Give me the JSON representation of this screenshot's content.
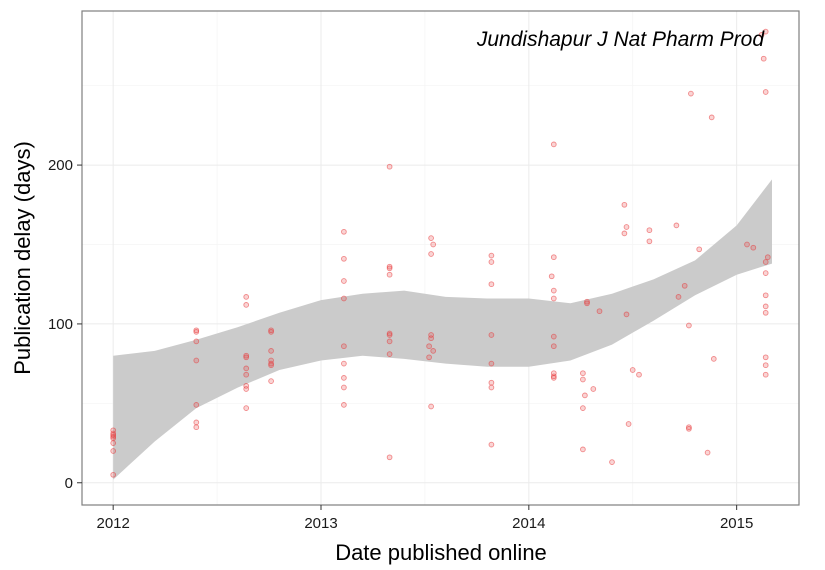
{
  "chart_data": {
    "type": "scatter",
    "title": "",
    "annotation": "Jundishapur J Nat Pharm Prod",
    "xlabel": "Date published online",
    "ylabel": "Publication delay (days)",
    "x_ticks": [
      {
        "label": "2012",
        "value": 2012.0
      },
      {
        "label": "2013",
        "value": 2013.0
      },
      {
        "label": "2014",
        "value": 2014.0
      },
      {
        "label": "2015",
        "value": 2015.0
      }
    ],
    "y_ticks": [
      {
        "label": "0",
        "value": 0
      },
      {
        "label": "100",
        "value": 100
      },
      {
        "label": "200",
        "value": 200
      }
    ],
    "xlim": [
      2011.85,
      2015.3
    ],
    "ylim": [
      -14,
      297
    ],
    "grid": true,
    "colors": {
      "points": "#e8393a",
      "ribbon": "#cbcbcb",
      "panel_border": "#7f7f7f",
      "grid_major": "#ebebeb",
      "grid_minor": "#f5f5f5"
    },
    "series": [
      {
        "type": "scatter",
        "points": [
          [
            2012.0,
            33
          ],
          [
            2012.0,
            31
          ],
          [
            2012.0,
            30
          ],
          [
            2012.0,
            29
          ],
          [
            2012.0,
            28
          ],
          [
            2012.0,
            25
          ],
          [
            2012.0,
            20
          ],
          [
            2012.0,
            5
          ],
          [
            2012.4,
            96
          ],
          [
            2012.4,
            95
          ],
          [
            2012.4,
            89
          ],
          [
            2012.4,
            77
          ],
          [
            2012.4,
            49
          ],
          [
            2012.4,
            38
          ],
          [
            2012.4,
            35
          ],
          [
            2012.64,
            117
          ],
          [
            2012.64,
            112
          ],
          [
            2012.64,
            80
          ],
          [
            2012.64,
            79
          ],
          [
            2012.64,
            72
          ],
          [
            2012.64,
            68
          ],
          [
            2012.64,
            61
          ],
          [
            2012.64,
            59
          ],
          [
            2012.64,
            47
          ],
          [
            2012.76,
            96
          ],
          [
            2012.76,
            95
          ],
          [
            2012.76,
            83
          ],
          [
            2012.76,
            77
          ],
          [
            2012.76,
            75
          ],
          [
            2012.76,
            74
          ],
          [
            2012.76,
            64
          ],
          [
            2013.11,
            158
          ],
          [
            2013.11,
            141
          ],
          [
            2013.11,
            127
          ],
          [
            2013.11,
            116
          ],
          [
            2013.11,
            86
          ],
          [
            2013.11,
            75
          ],
          [
            2013.11,
            66
          ],
          [
            2013.11,
            60
          ],
          [
            2013.11,
            49
          ],
          [
            2013.33,
            199
          ],
          [
            2013.33,
            136
          ],
          [
            2013.33,
            135
          ],
          [
            2013.33,
            131
          ],
          [
            2013.33,
            94
          ],
          [
            2013.33,
            93
          ],
          [
            2013.33,
            89
          ],
          [
            2013.33,
            81
          ],
          [
            2013.33,
            16
          ],
          [
            2013.53,
            154
          ],
          [
            2013.54,
            150
          ],
          [
            2013.53,
            144
          ],
          [
            2013.53,
            93
          ],
          [
            2013.53,
            91
          ],
          [
            2013.52,
            86
          ],
          [
            2013.54,
            83
          ],
          [
            2013.52,
            79
          ],
          [
            2013.53,
            48
          ],
          [
            2013.82,
            143
          ],
          [
            2013.82,
            139
          ],
          [
            2013.82,
            125
          ],
          [
            2013.82,
            93
          ],
          [
            2013.82,
            75
          ],
          [
            2013.82,
            63
          ],
          [
            2013.82,
            60
          ],
          [
            2013.82,
            24
          ],
          [
            2014.12,
            213
          ],
          [
            2014.12,
            142
          ],
          [
            2014.11,
            130
          ],
          [
            2014.12,
            121
          ],
          [
            2014.12,
            116
          ],
          [
            2014.12,
            92
          ],
          [
            2014.12,
            86
          ],
          [
            2014.12,
            67
          ],
          [
            2014.12,
            66
          ],
          [
            2014.12,
            69
          ],
          [
            2014.26,
            65
          ],
          [
            2014.26,
            69
          ],
          [
            2014.27,
            55
          ],
          [
            2014.26,
            47
          ],
          [
            2014.26,
            21
          ],
          [
            2014.28,
            114
          ],
          [
            2014.28,
            113
          ],
          [
            2014.31,
            59
          ],
          [
            2014.34,
            108
          ],
          [
            2014.4,
            13
          ],
          [
            2014.46,
            175
          ],
          [
            2014.47,
            161
          ],
          [
            2014.46,
            157
          ],
          [
            2014.47,
            106
          ],
          [
            2014.48,
            37
          ],
          [
            2014.5,
            71
          ],
          [
            2014.53,
            68
          ],
          [
            2014.58,
            159
          ],
          [
            2014.58,
            152
          ],
          [
            2014.71,
            162
          ],
          [
            2014.72,
            117
          ],
          [
            2014.75,
            124
          ],
          [
            2014.77,
            99
          ],
          [
            2014.77,
            35
          ],
          [
            2014.77,
            34
          ],
          [
            2014.78,
            245
          ],
          [
            2014.82,
            147
          ],
          [
            2014.86,
            19
          ],
          [
            2014.88,
            230
          ],
          [
            2014.89,
            78
          ],
          [
            2015.05,
            150
          ],
          [
            2015.08,
            148
          ],
          [
            2015.12,
            282
          ],
          [
            2015.14,
            284
          ],
          [
            2015.13,
            267
          ],
          [
            2015.14,
            246
          ],
          [
            2015.15,
            142
          ],
          [
            2015.14,
            139
          ],
          [
            2015.14,
            132
          ],
          [
            2015.14,
            118
          ],
          [
            2015.14,
            111
          ],
          [
            2015.14,
            107
          ],
          [
            2015.14,
            79
          ],
          [
            2015.14,
            74
          ],
          [
            2015.14,
            68
          ]
        ]
      },
      {
        "type": "band",
        "x": [
          2012.0,
          2012.2,
          2012.4,
          2012.6,
          2012.8,
          2013.0,
          2013.2,
          2013.4,
          2013.6,
          2013.8,
          2014.0,
          2014.2,
          2014.4,
          2014.6,
          2014.8,
          2015.0,
          2015.17
        ],
        "lower": [
          2,
          26,
          47,
          60,
          71,
          77,
          80,
          78,
          75,
          73,
          73,
          77,
          87,
          102,
          118,
          131,
          138
        ],
        "upper": [
          80,
          83,
          90,
          98,
          107,
          115,
          119,
          121,
          117,
          116,
          116,
          113,
          119,
          128,
          140,
          162,
          191
        ]
      }
    ]
  }
}
